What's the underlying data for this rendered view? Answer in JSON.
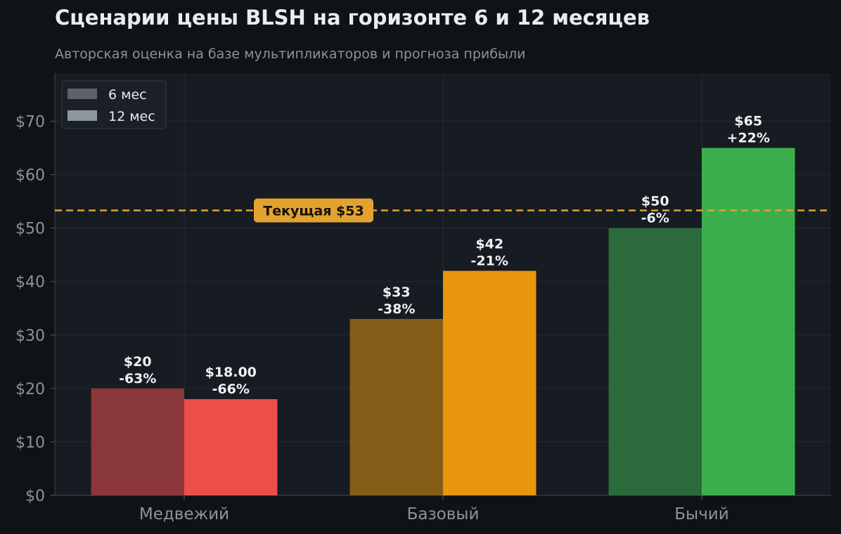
{
  "title": "Сценарии цены BLSH на горизонте 6 и 12 месяцев",
  "subtitle": "Авторская оценка на базе мультипликаторов и прогноза прибыли",
  "colors": {
    "background": "#0f1316",
    "plot_background": "#171b22",
    "grid": "#262b33",
    "reference": "#e3a230"
  },
  "chart_data": {
    "type": "bar",
    "categories": [
      "Медвежий",
      "Базовый",
      "Бычий"
    ],
    "series": [
      {
        "name": "6 мес",
        "values": [
          20,
          33,
          50
        ],
        "labels": [
          "$20",
          "$33",
          "$50"
        ],
        "changes": [
          "-63%",
          "-38%",
          "-6%"
        ],
        "colors": [
          "#8a373a",
          "#855d19",
          "#2a6a3b"
        ]
      },
      {
        "name": "12 мес",
        "values": [
          18,
          42,
          65
        ],
        "labels": [
          "$18.00",
          "$42",
          "$65"
        ],
        "changes": [
          "-66%",
          "-21%",
          "+22%"
        ],
        "colors": [
          "#ec4f4a",
          "#e8960e",
          "#3caf4c"
        ]
      }
    ],
    "legend_colors": [
      "#5c616b",
      "#8e97a0"
    ],
    "ylim": [
      0,
      79
    ],
    "yticks": [
      0,
      10,
      20,
      30,
      40,
      50,
      60,
      70
    ],
    "ytick_labels": [
      "$0",
      "$10",
      "$20",
      "$30",
      "$40",
      "$50",
      "$60",
      "$70"
    ],
    "reference_line": {
      "value": 53.3,
      "label": "Текущая $53"
    },
    "legend": {
      "placement": "top-left"
    },
    "grid": true
  }
}
